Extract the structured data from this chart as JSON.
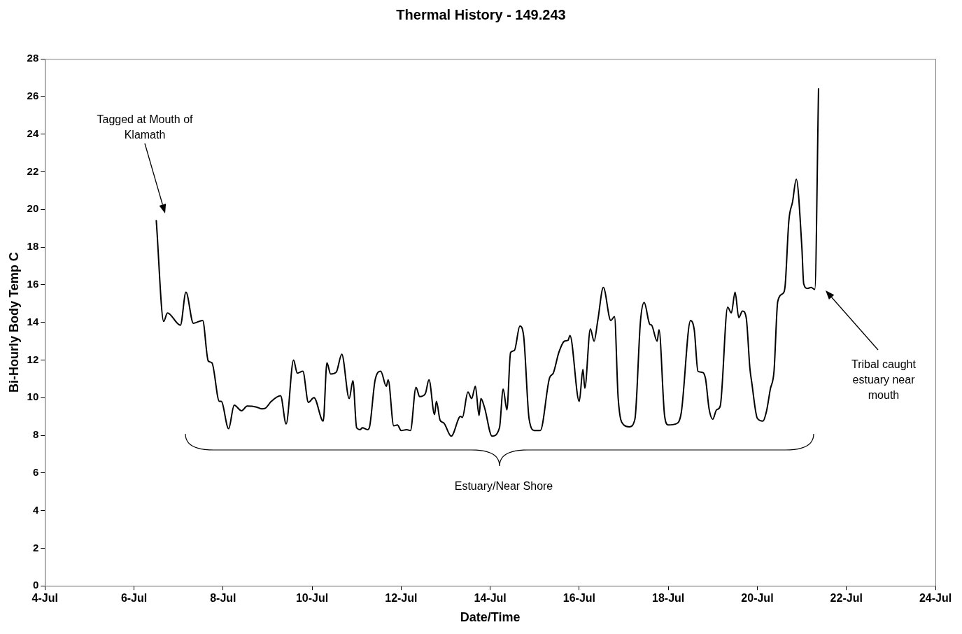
{
  "chart_data": {
    "type": "line",
    "title": "Thermal History - 149.243",
    "xlabel": "Date/Time",
    "ylabel": "Bi-Hourly Body Temp C",
    "xlim": [
      "--07-04",
      "--07-24"
    ],
    "xticks": [
      {
        "value": "--07-04",
        "label": "4-Jul"
      },
      {
        "value": "--07-06",
        "label": "6-Jul"
      },
      {
        "value": "--07-08",
        "label": "8-Jul"
      },
      {
        "value": "--07-10",
        "label": "10-Jul"
      },
      {
        "value": "--07-12",
        "label": "12-Jul"
      },
      {
        "value": "--07-14",
        "label": "14-Jul"
      },
      {
        "value": "--07-16",
        "label": "16-Jul"
      },
      {
        "value": "--07-18",
        "label": "18-Jul"
      },
      {
        "value": "--07-20",
        "label": "20-Jul"
      },
      {
        "value": "--07-22",
        "label": "22-Jul"
      },
      {
        "value": "--07-24",
        "label": "24-Jul"
      }
    ],
    "ylim": [
      0,
      28
    ],
    "yticks": [
      0,
      2,
      4,
      6,
      8,
      10,
      12,
      14,
      16,
      18,
      20,
      22,
      24,
      26,
      28
    ],
    "grid": false,
    "legend": false,
    "marker": "none",
    "line_style": "solid",
    "series": [
      {
        "color": "#000000",
        "x": [
          "--07-06T12:00",
          "--07-06T16:00",
          "--07-06T18:00",
          "--07-07T01:00",
          "--07-07T04:00",
          "--07-07T08:00",
          "--07-07T13:00",
          "--07-07T16:00",
          "--07-07T18:00",
          "--07-07T22:00",
          "--07-07T23:00",
          "--07-08T03:00",
          "--07-08T06:00",
          "--07-08T10:00",
          "--07-08T13:00",
          "--07-08T18:00",
          "--07-08T21:00",
          "--07-08T23:00",
          "--07-09T02:00",
          "--07-09T07:00",
          "--07-09T10:00",
          "--07-09T14:00",
          "--07-09T16:00",
          "--07-09T19:00",
          "--07-09T22:00",
          "--07-10T01:00",
          "--07-10T06:00",
          "--07-10T08:00",
          "--07-10T10:00",
          "--07-10T13:00",
          "--07-10T16:00",
          "--07-10T20:00",
          "--07-10T22:00",
          "--07-11T00:00",
          "--07-11T02:00",
          "--07-11T03:00",
          "--07-11T06:00",
          "--07-11T07:00",
          "--07-11T10:00",
          "--07-11T13:00",
          "--07-11T16:00",
          "--07-11T17:00",
          "--07-11T20:00",
          "--07-11T22:00",
          "--07-12T00:00",
          "--07-12T03:00",
          "--07-12T05:00",
          "--07-12T08:00",
          "--07-12T10:00",
          "--07-12T13:00",
          "--07-12T15:00",
          "--07-12T18:00",
          "--07-12T19:00",
          "--07-12T21:00",
          "--07-12T23:00",
          "--07-13T03:00",
          "--07-13T08:00",
          "--07-13T09:00",
          "--07-13T12:00",
          "--07-13T14:00",
          "--07-13T16:00",
          "--07-13T18:00",
          "--07-13T19:00",
          "--07-13T21:00",
          "--07-14T01:00",
          "--07-14T05:00",
          "--07-14T07:00",
          "--07-14T09:00",
          "--07-14T11:00",
          "--07-14T13:00",
          "--07-14T16:00",
          "--07-14T18:00",
          "--07-14T21:00",
          "--07-15T00:00",
          "--07-15T03:00",
          "--07-15T08:00",
          "--07-15T10:00",
          "--07-15T13:00",
          "--07-15T16:00",
          "--07-15T18:00",
          "--07-15T19:00",
          "--07-16T00:00",
          "--07-16T02:00",
          "--07-16T03:00",
          "--07-16T06:00",
          "--07-16T08:00",
          "--07-16T10:00",
          "--07-16T13:00",
          "--07-16T17:00",
          "--07-16T19:00",
          "--07-16T21:00",
          "--07-17T00:00",
          "--07-17T03:00",
          "--07-17T06:00",
          "--07-17T09:00",
          "--07-17T11:00",
          "--07-17T14:00",
          "--07-17T15:00",
          "--07-17T18:00",
          "--07-17T19:00",
          "--07-17T22:00",
          "--07-18T00:00",
          "--07-18T04:00",
          "--07-18T07:00",
          "--07-18T12:00",
          "--07-18T14:00",
          "--07-18T16:00",
          "--07-18T18:00",
          "--07-18T20:00",
          "--07-18T22:00",
          "--07-19T00:00",
          "--07-19T02:00",
          "--07-19T04:00",
          "--07-19T08:00",
          "--07-19T10:00",
          "--07-19T12:00",
          "--07-19T14:00",
          "--07-19T16:00",
          "--07-19T18:00",
          "--07-19T20:00",
          "--07-19T21:00",
          "--07-20T00:00",
          "--07-20T03:00",
          "--07-20T05:00",
          "--07-20T07:00",
          "--07-20T09:00",
          "--07-20T11:00",
          "--07-20T14:00",
          "--07-20T15:00",
          "--07-20T17:00",
          "--07-20T19:00",
          "--07-20T21:00",
          "--07-21T00:00",
          "--07-21T01:00",
          "--07-21T03:00",
          "--07-21T05:00",
          "--07-21T07:00",
          "--07-21T09:00"
        ],
        "values": [
          19.4,
          14.05,
          14.5,
          13.85,
          15.6,
          13.95,
          14.1,
          11.95,
          11.85,
          9.8,
          9.8,
          8.35,
          9.6,
          9.3,
          9.55,
          9.5,
          9.4,
          9.45,
          9.8,
          10.1,
          8.6,
          12.0,
          11.3,
          11.4,
          9.75,
          10.0,
          8.75,
          11.85,
          11.25,
          11.35,
          12.3,
          9.95,
          10.9,
          8.4,
          8.3,
          8.4,
          8.3,
          8.45,
          10.95,
          11.4,
          10.6,
          10.95,
          8.5,
          8.55,
          8.25,
          8.3,
          8.25,
          10.55,
          10.05,
          10.2,
          10.95,
          9.1,
          9.8,
          8.8,
          8.65,
          7.95,
          9.0,
          8.95,
          10.3,
          9.95,
          10.6,
          9.05,
          9.95,
          9.45,
          7.95,
          8.4,
          10.45,
          9.35,
          12.4,
          12.5,
          13.8,
          13.3,
          8.85,
          8.25,
          8.25,
          11.05,
          11.3,
          12.4,
          13.0,
          13.05,
          13.3,
          9.8,
          11.5,
          10.5,
          13.65,
          13.0,
          14.1,
          15.85,
          14.1,
          14.3,
          9.95,
          8.55,
          8.45,
          8.85,
          14.05,
          15.05,
          13.9,
          13.85,
          13.0,
          13.6,
          9.05,
          8.55,
          8.6,
          9.2,
          14.1,
          13.6,
          11.4,
          11.35,
          11.05,
          9.4,
          8.85,
          9.35,
          9.55,
          14.8,
          14.5,
          15.6,
          14.25,
          14.6,
          14.25,
          11.55,
          10.8,
          8.9,
          8.75,
          9.3,
          10.45,
          11.4,
          15.1,
          15.55,
          15.95,
          19.4,
          20.4,
          21.6,
          18.0,
          16.05,
          15.8,
          15.85,
          15.75,
          26.4
        ]
      }
    ],
    "annotations": [
      "Tagged at Mouth of Klamath",
      "Tribal caught estuary near mouth",
      "Estuary/Near Shore"
    ]
  }
}
